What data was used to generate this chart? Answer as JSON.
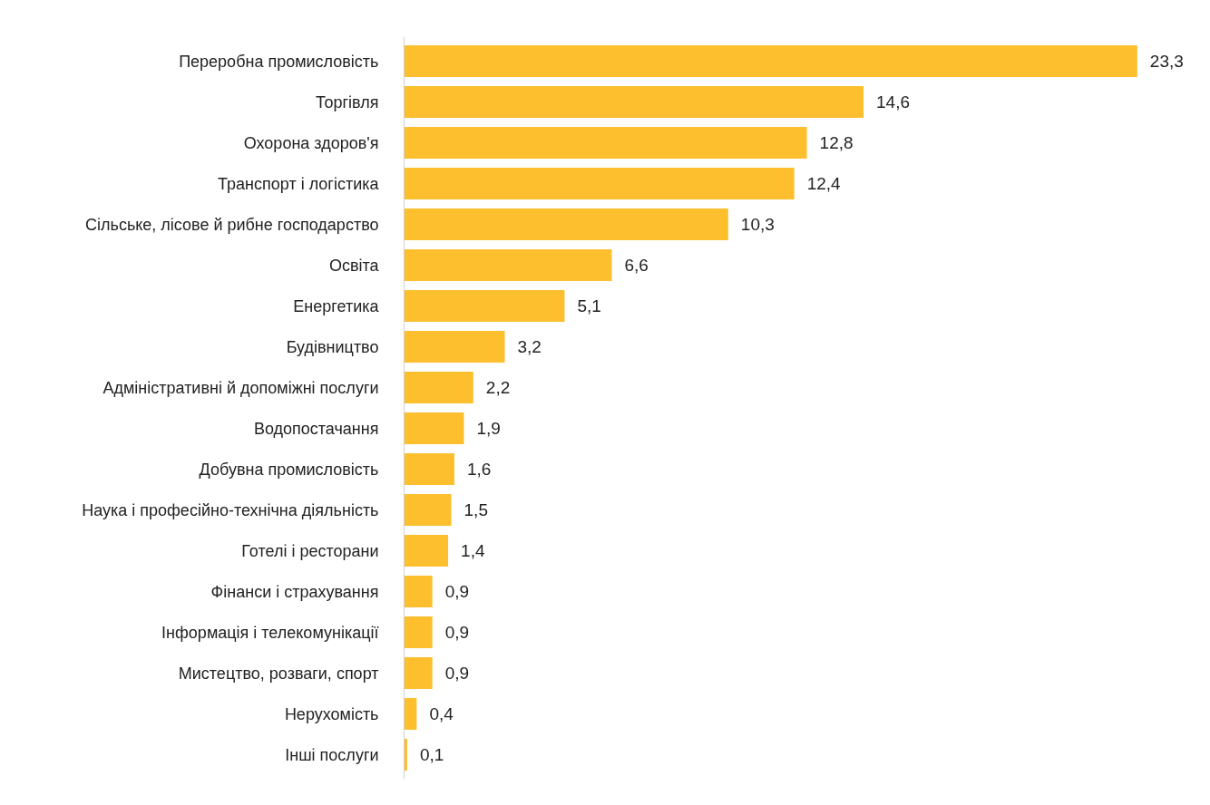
{
  "chart_data": {
    "type": "bar",
    "orientation": "horizontal",
    "color": "#fdbf2d",
    "categories": [
      "Переробна промисловість",
      "Торгівля",
      "Охорона здоров'я",
      "Транспорт і логістика",
      "Сільське, лісове й рибне господарство",
      "Освіта",
      "Енергетика",
      "Будівництво",
      "Адміністративні й допоміжні послуги",
      "Водопостачання",
      "Добувна промисловість",
      "Наука і професійно-технічна діяльність",
      "Готелі і ресторани",
      "Фінанси і страхування",
      "Інформація і телекомунікації",
      "Мистецтво, розваги, спорт",
      "Нерухомість",
      "Інші послуги"
    ],
    "values": [
      23.3,
      14.6,
      12.8,
      12.4,
      10.3,
      6.6,
      5.1,
      3.2,
      2.2,
      1.9,
      1.6,
      1.5,
      1.4,
      0.9,
      0.9,
      0.9,
      0.4,
      0.1
    ],
    "value_labels": [
      "23,3",
      "14,6",
      "12,8",
      "12,4",
      "10,3",
      "6,6",
      "5,1",
      "3,2",
      "2,2",
      "1,9",
      "1,6",
      "1,5",
      "1,4",
      "0,9",
      "0,9",
      "0,9",
      "0,4",
      "0,1"
    ],
    "grid": false
  }
}
